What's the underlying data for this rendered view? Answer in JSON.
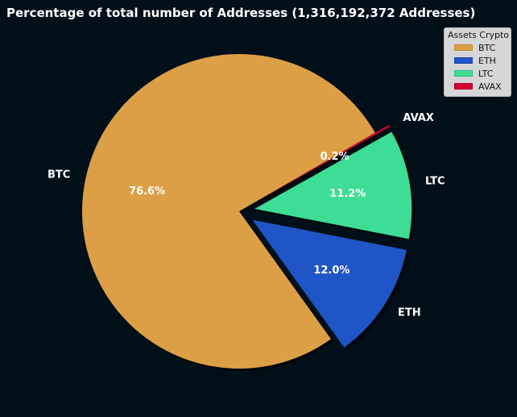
{
  "chart_data": {
    "type": "pie",
    "title": "Percentage of total number of Addresses (1,316,192,372 Addresses)",
    "categories": [
      "BTC",
      "ETH",
      "LTC",
      "AVAX"
    ],
    "values": [
      76.6,
      12.0,
      11.2,
      0.2
    ],
    "value_labels": [
      "76.6%",
      "12.0%",
      "11.2%",
      "0.2%"
    ],
    "exploded": [
      false,
      true,
      true,
      true
    ],
    "colors": [
      "#dd9f45",
      "#1f55c6",
      "#3ddd95",
      "#d50032"
    ],
    "shadow": true,
    "legend": {
      "title": "Assets Crypto",
      "placement": "top-right"
    }
  }
}
